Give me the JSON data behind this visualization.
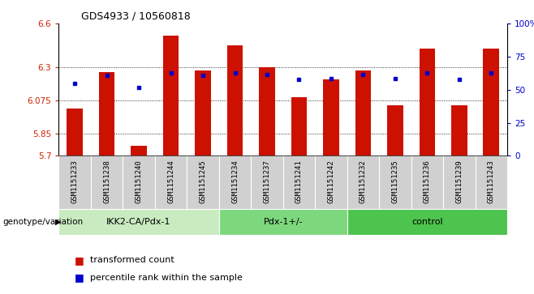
{
  "title": "GDS4933 / 10560818",
  "samples": [
    "GSM1151233",
    "GSM1151238",
    "GSM1151240",
    "GSM1151244",
    "GSM1151245",
    "GSM1151234",
    "GSM1151237",
    "GSM1151241",
    "GSM1151242",
    "GSM1151232",
    "GSM1151235",
    "GSM1151236",
    "GSM1151239",
    "GSM1151243"
  ],
  "red_values": [
    6.02,
    6.27,
    5.77,
    6.52,
    6.28,
    6.45,
    6.3,
    6.1,
    6.22,
    6.28,
    6.045,
    6.43,
    6.045,
    6.43
  ],
  "blue_values": [
    6.19,
    6.245,
    6.165,
    6.265,
    6.245,
    6.265,
    6.255,
    6.22,
    6.225,
    6.255,
    6.225,
    6.265,
    6.22,
    6.265
  ],
  "groups": [
    {
      "label": "IKK2-CA/Pdx-1",
      "start": 0,
      "end": 5,
      "color": "#c8ebc0"
    },
    {
      "label": "Pdx-1+/-",
      "start": 5,
      "end": 9,
      "color": "#7dd87d"
    },
    {
      "label": "control",
      "start": 9,
      "end": 14,
      "color": "#4dc44d"
    }
  ],
  "ylim": [
    5.7,
    6.6
  ],
  "yticks": [
    5.7,
    5.85,
    6.075,
    6.3,
    6.6
  ],
  "ytick_labels": [
    "5.7",
    "5.85",
    "6.075",
    "6.3",
    "6.6"
  ],
  "right_yticks": [
    0,
    25,
    50,
    75,
    100
  ],
  "right_ytick_labels": [
    "0",
    "25",
    "50",
    "75",
    "100%"
  ],
  "bar_color": "#cc1100",
  "dot_color": "#0000cc",
  "bar_width": 0.5,
  "left_tick_color": "#cc2200",
  "right_tick_color": "#0000cc",
  "legend_items": [
    "transformed count",
    "percentile rank within the sample"
  ],
  "genotype_label": "genotype/variation"
}
